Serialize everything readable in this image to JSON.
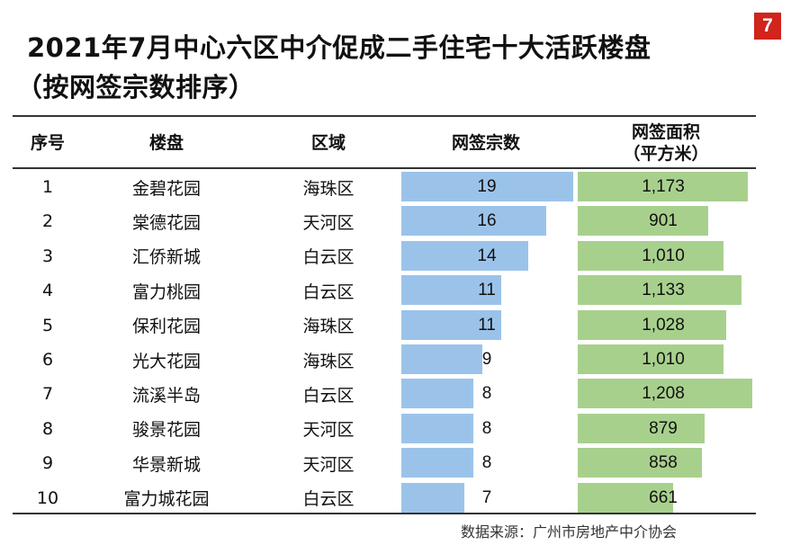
{
  "page_number": "7",
  "chart_data": {
    "type": "table",
    "title": "2021年7月中心六区中介促成二手住宅十大活跃楼盘",
    "subtitle": "（按网签宗数排序）",
    "columns": {
      "rank": "序号",
      "estate": "楼盘",
      "district": "区域",
      "count": "网签宗数",
      "area_line1": "网签面积",
      "area_line2": "（平方米）"
    },
    "rows": [
      {
        "rank": "1",
        "estate": "金碧花园",
        "district": "海珠区",
        "count": 19,
        "count_label": "19",
        "area": 1173,
        "area_label": "1,173"
      },
      {
        "rank": "2",
        "estate": "棠德花园",
        "district": "天河区",
        "count": 16,
        "count_label": "16",
        "area": 901,
        "area_label": "901"
      },
      {
        "rank": "3",
        "estate": "汇侨新城",
        "district": "白云区",
        "count": 14,
        "count_label": "14",
        "area": 1010,
        "area_label": "1,010"
      },
      {
        "rank": "4",
        "estate": "富力桃园",
        "district": "白云区",
        "count": 11,
        "count_label": "11",
        "area": 1133,
        "area_label": "1,133"
      },
      {
        "rank": "5",
        "estate": "保利花园",
        "district": "海珠区",
        "count": 11,
        "count_label": "11",
        "area": 1028,
        "area_label": "1,028"
      },
      {
        "rank": "6",
        "estate": "光大花园",
        "district": "海珠区",
        "count": 9,
        "count_label": "9",
        "area": 1010,
        "area_label": "1,010"
      },
      {
        "rank": "7",
        "estate": "流溪半岛",
        "district": "白云区",
        "count": 8,
        "count_label": "8",
        "area": 1208,
        "area_label": "1,208"
      },
      {
        "rank": "8",
        "estate": "骏景花园",
        "district": "天河区",
        "count": 8,
        "count_label": "8",
        "area": 879,
        "area_label": "879"
      },
      {
        "rank": "9",
        "estate": "华景新城",
        "district": "天河区",
        "count": 8,
        "count_label": "8",
        "area": 858,
        "area_label": "858"
      },
      {
        "rank": "10",
        "estate": "富力城花园",
        "district": "白云区",
        "count": 7,
        "count_label": "7",
        "area": 661,
        "area_label": "661"
      }
    ],
    "colors": {
      "count_bar": "#9bc3ea",
      "area_bar": "#a8d08d",
      "badge": "#d0241c"
    }
  },
  "source": "数据来源：广州市房地产中介协会"
}
